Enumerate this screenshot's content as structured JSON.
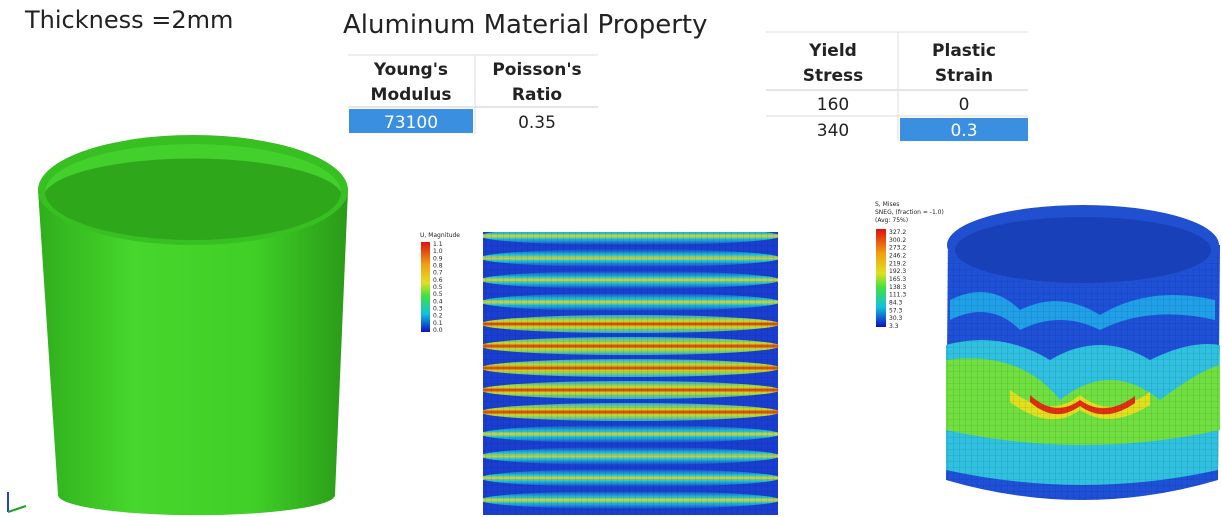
{
  "header": {
    "thickness": "Thickness =2mm",
    "title": "Aluminum Material Property"
  },
  "elastic_table": {
    "columns": [
      "Young's Modulus",
      "Poisson's Ratio"
    ],
    "rows": [
      [
        "73100",
        "0.35"
      ]
    ]
  },
  "plastic_table": {
    "columns": [
      "Yield Stress",
      "Plastic Strain"
    ],
    "rows": [
      [
        "160",
        "0"
      ],
      [
        "340",
        "0.3"
      ]
    ]
  },
  "displacement_legend": {
    "title": "U, Magnitude",
    "labels": [
      "1.1",
      "1.0",
      "0.9",
      "0.8",
      "0.7",
      "0.6",
      "0.5",
      "0.5",
      "0.4",
      "0.3",
      "0.2",
      "0.1",
      "0.0"
    ]
  },
  "stress_legend": {
    "title": "S, Mises",
    "subtitle": "SNEG, (fraction = -1.0)",
    "note": "(Avg: 75%)",
    "labels": [
      "327.2",
      "300.2",
      "273.2",
      "246.2",
      "219.2",
      "192.3",
      "165.3",
      "138.3",
      "111.3",
      "84.3",
      "57.3",
      "30.3",
      "3.3"
    ]
  }
}
